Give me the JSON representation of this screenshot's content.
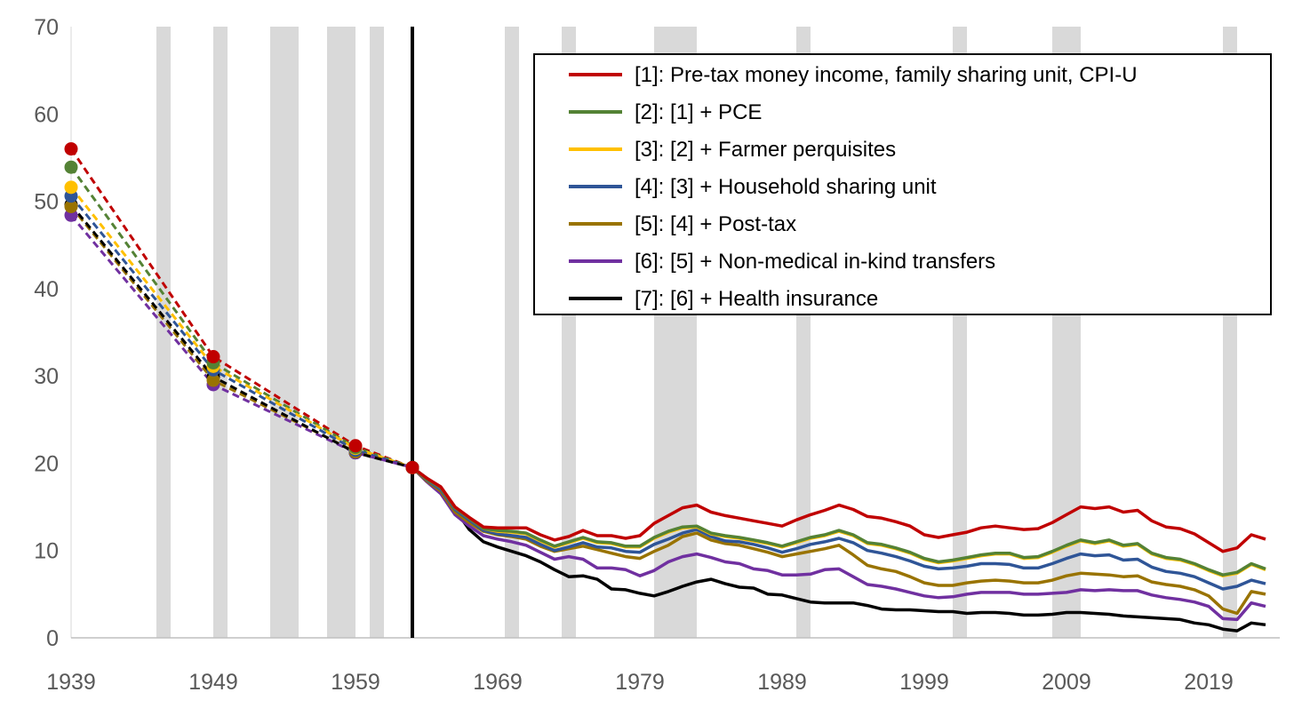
{
  "chart_data": {
    "type": "line",
    "title": "",
    "xlabel": "",
    "ylabel": "",
    "xlim": [
      1939,
      2024
    ],
    "ylim": [
      0,
      70
    ],
    "yticks": [
      0,
      10,
      20,
      30,
      40,
      50,
      60,
      70
    ],
    "xticks": [
      1939,
      1949,
      1959,
      1969,
      1979,
      1989,
      1999,
      2009,
      2019
    ],
    "legend_position": "top-right",
    "grid": false,
    "vertical_marker_year": 1963,
    "recession_bands": [
      [
        1945,
        1946
      ],
      [
        1949,
        1950
      ],
      [
        1953,
        1955
      ],
      [
        1957,
        1959
      ],
      [
        1960,
        1961
      ],
      [
        1969.5,
        1970.5
      ],
      [
        1973.5,
        1974.5
      ],
      [
        1980,
        1983
      ],
      [
        1990,
        1991
      ],
      [
        2001,
        2002
      ],
      [
        2008,
        2010
      ],
      [
        2020,
        2021
      ]
    ],
    "early_points_x": [
      1939,
      1949,
      1959,
      1963
    ],
    "x_start": 1963,
    "series": [
      {
        "name": "[1]: Pre-tax money income, family sharing unit, CPI-U",
        "color": "#C00000",
        "early": [
          56.0,
          32.2,
          22.0,
          19.5
        ],
        "values": [
          19.5,
          18.3,
          17.3,
          15.0,
          13.8,
          12.7,
          12.6,
          12.6,
          12.6,
          11.8,
          11.2,
          11.6,
          12.3,
          11.7,
          11.7,
          11.4,
          11.7,
          13.1,
          14.0,
          14.9,
          15.2,
          14.4,
          14.0,
          13.7,
          13.4,
          13.1,
          12.8,
          13.5,
          14.1,
          14.6,
          15.2,
          14.7,
          13.9,
          13.7,
          13.3,
          12.8,
          11.8,
          11.5,
          11.8,
          12.1,
          12.6,
          12.8,
          12.6,
          12.4,
          12.5,
          13.2,
          14.1,
          15.0,
          14.8,
          15.0,
          14.4,
          14.6,
          13.4,
          12.7,
          12.5,
          11.9,
          10.9,
          9.9,
          10.3,
          11.8,
          11.3
        ]
      },
      {
        "name": "[2]: [1] + PCE",
        "color": "#548235",
        "early": [
          53.9,
          31.5,
          21.8,
          19.5
        ],
        "values": [
          19.5,
          18.2,
          17.2,
          14.9,
          13.7,
          12.5,
          12.3,
          12.2,
          12.0,
          11.2,
          10.5,
          11.0,
          11.5,
          11.0,
          10.9,
          10.5,
          10.5,
          11.5,
          12.2,
          12.7,
          12.8,
          12.0,
          11.7,
          11.5,
          11.2,
          10.9,
          10.5,
          11.0,
          11.5,
          11.8,
          12.3,
          11.8,
          10.9,
          10.7,
          10.3,
          9.8,
          9.1,
          8.7,
          8.9,
          9.2,
          9.5,
          9.7,
          9.7,
          9.2,
          9.3,
          9.9,
          10.6,
          11.2,
          10.9,
          11.2,
          10.6,
          10.8,
          9.7,
          9.2,
          9.0,
          8.5,
          7.8,
          7.2,
          7.5,
          8.5,
          7.9
        ]
      },
      {
        "name": "[3]: [2] + Farmer perquisites",
        "color": "#FFC000",
        "early": [
          51.6,
          31.1,
          21.7,
          19.5
        ],
        "values": [
          19.5,
          18.2,
          17.2,
          14.9,
          13.7,
          12.5,
          12.2,
          12.1,
          11.9,
          11.1,
          10.4,
          10.9,
          11.4,
          10.9,
          10.8,
          10.4,
          10.4,
          11.4,
          12.1,
          12.6,
          12.7,
          11.9,
          11.6,
          11.4,
          11.1,
          10.8,
          10.4,
          10.9,
          11.4,
          11.7,
          12.2,
          11.7,
          10.8,
          10.6,
          10.2,
          9.7,
          9.0,
          8.6,
          8.8,
          9.1,
          9.4,
          9.6,
          9.6,
          9.1,
          9.2,
          9.8,
          10.5,
          11.1,
          10.8,
          11.1,
          10.5,
          10.7,
          9.6,
          9.1,
          8.9,
          8.4,
          7.7,
          7.1,
          7.4,
          8.4,
          7.8
        ]
      },
      {
        "name": "[4]: [3] + Household sharing unit",
        "color": "#2F5597",
        "early": [
          50.6,
          30.7,
          21.5,
          19.5
        ],
        "values": [
          19.5,
          18.1,
          17.0,
          14.7,
          13.5,
          12.3,
          11.9,
          11.7,
          11.5,
          10.7,
          10.0,
          10.4,
          10.9,
          10.4,
          10.3,
          9.9,
          9.8,
          10.7,
          11.3,
          12.0,
          12.4,
          11.6,
          11.1,
          11.0,
          10.7,
          10.3,
          9.8,
          10.2,
          10.7,
          11.0,
          11.4,
          10.9,
          10.0,
          9.7,
          9.3,
          8.8,
          8.2,
          7.9,
          8.0,
          8.2,
          8.5,
          8.5,
          8.4,
          8.0,
          8.0,
          8.5,
          9.1,
          9.6,
          9.4,
          9.5,
          8.9,
          9.0,
          8.1,
          7.6,
          7.4,
          7.0,
          6.3,
          5.6,
          5.9,
          6.6,
          6.2
        ]
      },
      {
        "name": "[5]: [4] + Post-tax",
        "color": "#997300",
        "early": [
          49.4,
          29.5,
          21.3,
          19.5
        ],
        "values": [
          19.5,
          18.0,
          16.8,
          14.4,
          13.2,
          12.2,
          11.8,
          11.6,
          11.3,
          10.5,
          9.9,
          10.2,
          10.5,
          10.1,
          9.7,
          9.3,
          9.1,
          9.9,
          10.6,
          11.6,
          12.0,
          11.2,
          10.8,
          10.6,
          10.2,
          9.8,
          9.3,
          9.6,
          9.9,
          10.2,
          10.6,
          9.5,
          8.3,
          7.9,
          7.6,
          7.0,
          6.3,
          6.0,
          6.0,
          6.3,
          6.5,
          6.6,
          6.5,
          6.3,
          6.3,
          6.6,
          7.1,
          7.4,
          7.3,
          7.2,
          7.0,
          7.1,
          6.4,
          6.1,
          5.9,
          5.5,
          4.8,
          3.3,
          2.8,
          5.3,
          5.0
        ]
      },
      {
        "name": "[6]: [5] + Non-medical in-kind transfers",
        "color": "#7030A0",
        "early": [
          48.4,
          29.0,
          21.2,
          19.5
        ],
        "values": [
          19.5,
          17.9,
          16.5,
          14.1,
          12.8,
          11.7,
          11.3,
          11.0,
          10.6,
          9.8,
          9.0,
          9.3,
          9.0,
          8.0,
          8.0,
          7.8,
          7.1,
          7.7,
          8.7,
          9.3,
          9.6,
          9.2,
          8.7,
          8.5,
          7.9,
          7.7,
          7.2,
          7.2,
          7.3,
          7.8,
          7.9,
          7.0,
          6.1,
          5.9,
          5.6,
          5.2,
          4.8,
          4.6,
          4.7,
          5.0,
          5.2,
          5.2,
          5.2,
          5.0,
          5.0,
          5.1,
          5.2,
          5.5,
          5.4,
          5.5,
          5.4,
          5.4,
          4.9,
          4.6,
          4.4,
          4.1,
          3.6,
          2.2,
          2.1,
          4.0,
          3.6
        ]
      },
      {
        "name": "[7]: [6] + Health insurance",
        "color": "#000000",
        "early": [
          49.6,
          29.9,
          21.2,
          19.5
        ],
        "values": [
          19.5,
          18.3,
          16.8,
          14.7,
          12.4,
          11.0,
          10.4,
          9.9,
          9.4,
          8.7,
          7.8,
          7.0,
          7.1,
          6.7,
          5.6,
          5.5,
          5.1,
          4.8,
          5.3,
          5.9,
          6.4,
          6.7,
          6.2,
          5.8,
          5.7,
          5.0,
          4.9,
          4.5,
          4.1,
          4.0,
          4.0,
          4.0,
          3.7,
          3.3,
          3.2,
          3.2,
          3.1,
          3.0,
          3.0,
          2.8,
          2.9,
          2.9,
          2.8,
          2.6,
          2.6,
          2.7,
          2.9,
          2.9,
          2.8,
          2.7,
          2.5,
          2.4,
          2.3,
          2.2,
          2.1,
          1.7,
          1.5,
          1.0,
          0.8,
          1.7,
          1.5
        ]
      }
    ]
  }
}
